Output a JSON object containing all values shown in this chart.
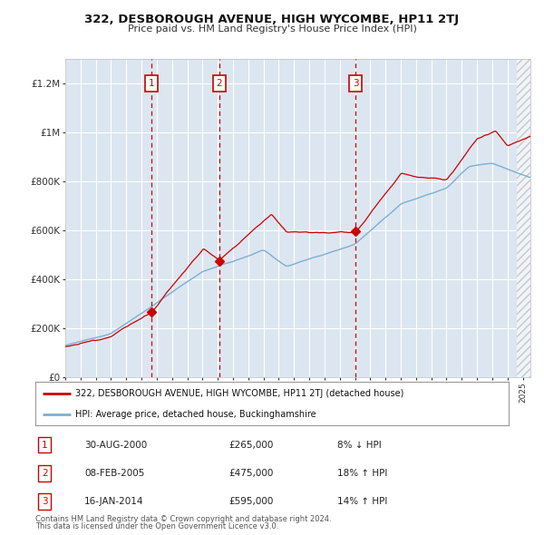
{
  "title": "322, DESBOROUGH AVENUE, HIGH WYCOMBE, HP11 2TJ",
  "subtitle": "Price paid vs. HM Land Registry's House Price Index (HPI)",
  "ylim": [
    0,
    1300000
  ],
  "xlim_start": 1995.0,
  "xlim_end": 2025.5,
  "transaction_dates": [
    2000.66,
    2005.1,
    2014.04
  ],
  "transaction_prices": [
    265000,
    475000,
    595000
  ],
  "transaction_labels": [
    "1",
    "2",
    "3"
  ],
  "transaction_info": [
    {
      "label": "1",
      "date": "30-AUG-2000",
      "price": "£265,000",
      "pct": "8% ↓ HPI"
    },
    {
      "label": "2",
      "date": "08-FEB-2005",
      "price": "£475,000",
      "pct": "18% ↑ HPI"
    },
    {
      "label": "3",
      "date": "16-JAN-2014",
      "price": "£595,000",
      "pct": "14% ↑ HPI"
    }
  ],
  "legend_line1": "322, DESBOROUGH AVENUE, HIGH WYCOMBE, HP11 2TJ (detached house)",
  "legend_line2": "HPI: Average price, detached house, Buckinghamshire",
  "footer1": "Contains HM Land Registry data © Crown copyright and database right 2024.",
  "footer2": "This data is licensed under the Open Government Licence v3.0.",
  "red_color": "#cc0000",
  "blue_color": "#7bafd4",
  "bg_color": "#dce6f1",
  "dashed_color": "#cc0000"
}
